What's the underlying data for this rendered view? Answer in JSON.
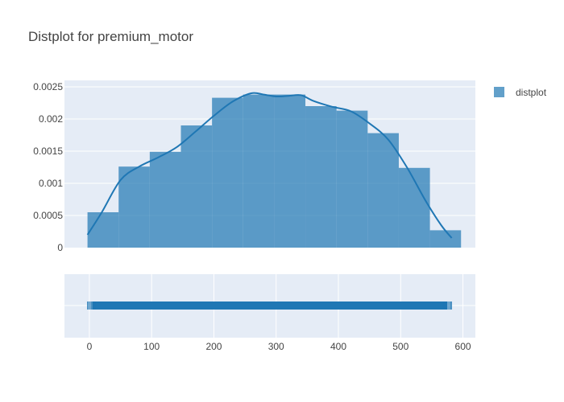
{
  "chart_data": {
    "type": "distplot",
    "title": "Distplot for premium_motor",
    "xlabel": "",
    "ylabel": "",
    "xlim": [
      -40,
      620
    ],
    "ylim": [
      0,
      0.0026
    ],
    "x_ticks": [
      0,
      100,
      200,
      300,
      400,
      500,
      600
    ],
    "y_ticks": [
      0,
      0.0005,
      0.001,
      0.0015,
      0.002,
      0.0025
    ],
    "y_tick_labels": [
      "0",
      "0.0005",
      "0.001",
      "0.0015",
      "0.002",
      "0.0025"
    ],
    "grid": true,
    "legend_position": "top-right",
    "series": [
      {
        "name": "distplot",
        "color": "#1f77b4",
        "bins": {
          "edges": [
            -3,
            47,
            97,
            147,
            197,
            247,
            297,
            347,
            397,
            447,
            497,
            547,
            597
          ],
          "values": [
            0.00055,
            0.00126,
            0.00149,
            0.0019,
            0.00233,
            0.00238,
            0.00238,
            0.0022,
            0.00213,
            0.00178,
            0.00124,
            0.00027
          ]
        },
        "kde": {
          "x": [
            -3,
            20,
            50,
            80,
            110,
            140,
            170,
            200,
            230,
            260,
            280,
            300,
            320,
            340,
            360,
            390,
            420,
            450,
            480,
            510,
            540,
            565,
            582
          ],
          "y": [
            0.0002,
            0.00055,
            0.00105,
            0.00126,
            0.0014,
            0.00156,
            0.0018,
            0.00205,
            0.00227,
            0.0024,
            0.00238,
            0.00235,
            0.00236,
            0.00237,
            0.00228,
            0.00219,
            0.00212,
            0.00193,
            0.00168,
            0.00125,
            0.00073,
            0.00035,
            0.00015
          ]
        },
        "rug": {
          "x_min": -3,
          "x_max": 582
        }
      }
    ]
  }
}
